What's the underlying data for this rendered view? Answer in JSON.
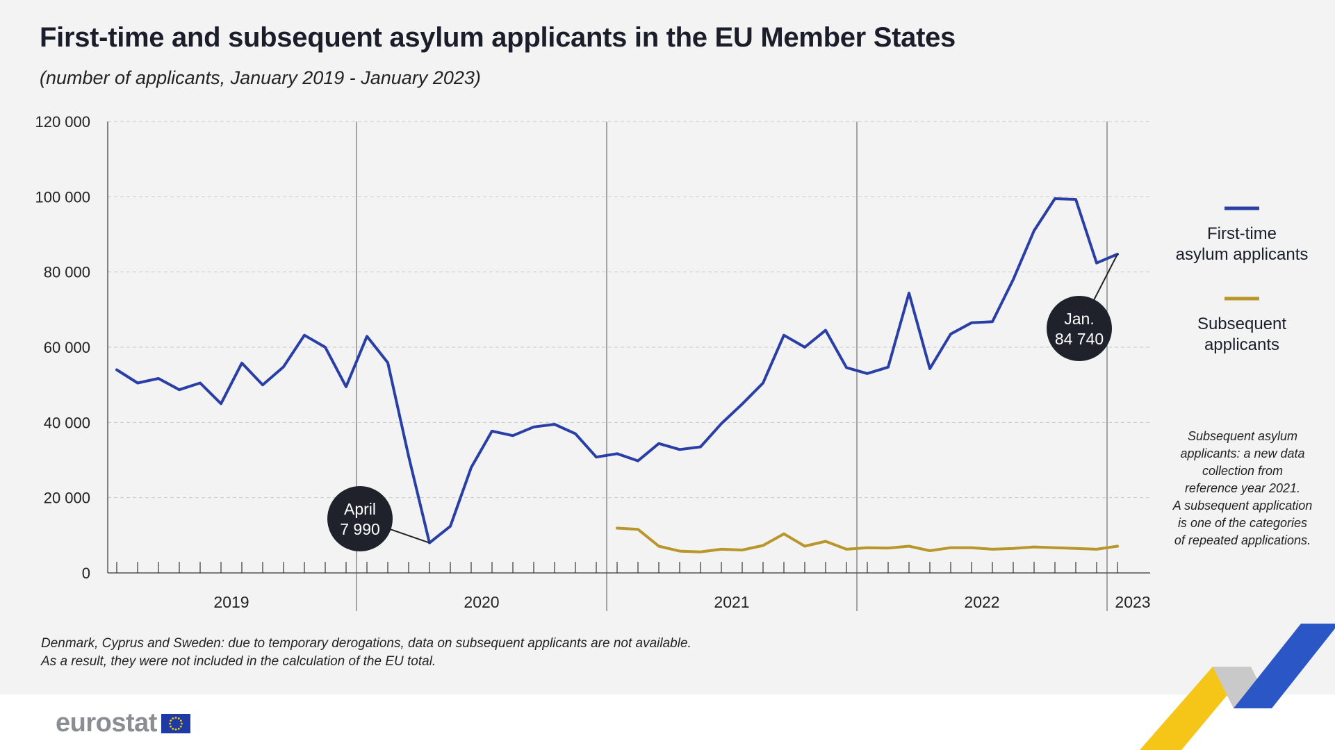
{
  "title": "First-time and subsequent asylum applicants in the EU Member States",
  "subtitle": "(number of applicants, January 2019 - January 2023)",
  "colors": {
    "first_time": "#2a3fa6",
    "subsequent": "#b8962a",
    "callout_bg": "#1f222b",
    "grid": "#c8c8c8",
    "axis": "#333333"
  },
  "chart_data": {
    "type": "line",
    "title": "First-time and subsequent asylum applicants in the EU Member States",
    "xlabel": "",
    "ylabel": "number of applicants",
    "ylim": [
      0,
      120000
    ],
    "y_ticks": [
      {
        "value": 0,
        "label": "0"
      },
      {
        "value": 20000,
        "label": "20 000"
      },
      {
        "value": 40000,
        "label": "40 000"
      },
      {
        "value": 60000,
        "label": "60 000"
      },
      {
        "value": 80000,
        "label": "80 000"
      },
      {
        "value": 100000,
        "label": "100 000"
      },
      {
        "value": 120000,
        "label": "120 000"
      }
    ],
    "years": [
      {
        "label": "2019",
        "start_index": 0,
        "months": 12
      },
      {
        "label": "2020",
        "start_index": 12,
        "months": 12
      },
      {
        "label": "2021",
        "start_index": 24,
        "months": 12
      },
      {
        "label": "2022",
        "start_index": 36,
        "months": 12
      },
      {
        "label": "2023",
        "start_index": 48,
        "months": 1
      }
    ],
    "x": [
      "2019-01",
      "2019-02",
      "2019-03",
      "2019-04",
      "2019-05",
      "2019-06",
      "2019-07",
      "2019-08",
      "2019-09",
      "2019-10",
      "2019-11",
      "2019-12",
      "2020-01",
      "2020-02",
      "2020-03",
      "2020-04",
      "2020-05",
      "2020-06",
      "2020-07",
      "2020-08",
      "2020-09",
      "2020-10",
      "2020-11",
      "2020-12",
      "2021-01",
      "2021-02",
      "2021-03",
      "2021-04",
      "2021-05",
      "2021-06",
      "2021-07",
      "2021-08",
      "2021-09",
      "2021-10",
      "2021-11",
      "2021-12",
      "2022-01",
      "2022-02",
      "2022-03",
      "2022-04",
      "2022-05",
      "2022-06",
      "2022-07",
      "2022-08",
      "2022-09",
      "2022-10",
      "2022-11",
      "2022-12",
      "2023-01"
    ],
    "series": [
      {
        "name": "First-time asylum applicants",
        "legend_lines": [
          "First-time",
          "asylum applicants"
        ],
        "color_key": "first_time",
        "values": [
          54000,
          50500,
          51700,
          48700,
          50500,
          45000,
          55800,
          50000,
          54800,
          63200,
          60000,
          49500,
          62900,
          55900,
          31000,
          7990,
          12400,
          28000,
          37700,
          36500,
          38800,
          39500,
          37000,
          30800,
          31700,
          29800,
          34400,
          32800,
          33500,
          39700,
          44900,
          50500,
          63200,
          60000,
          64500,
          54600,
          53000,
          54700,
          74400,
          54300,
          63500,
          66500,
          66800,
          78000,
          91000,
          99500,
          99300,
          82400,
          84740
        ]
      },
      {
        "name": "Subsequent applicants",
        "legend_lines": [
          "Subsequent",
          "applicants"
        ],
        "color_key": "subsequent",
        "values": [
          null,
          null,
          null,
          null,
          null,
          null,
          null,
          null,
          null,
          null,
          null,
          null,
          null,
          null,
          null,
          null,
          null,
          null,
          null,
          null,
          null,
          null,
          null,
          null,
          11900,
          11600,
          7100,
          5800,
          5600,
          6300,
          6100,
          7300,
          10400,
          7100,
          8400,
          6300,
          6700,
          6600,
          7100,
          5900,
          6700,
          6700,
          6300,
          6500,
          6900,
          6700,
          6500,
          6300,
          7100
        ]
      }
    ],
    "annotations": [
      {
        "index": 15,
        "series": 0,
        "lines": [
          "April",
          "7 990"
        ]
      },
      {
        "index": 48,
        "series": 0,
        "lines": [
          "Jan.",
          "84 740"
        ]
      }
    ],
    "legend_position": "right"
  },
  "side_note": [
    "Subsequent asylum",
    "applicants: a new data",
    "collection from",
    "reference year 2021.",
    "A subsequent application",
    "is one of the categories",
    "of repeated applications."
  ],
  "footnote": [
    "Denmark, Cyprus and Sweden: due to temporary derogations, data on subsequent applicants are not available.",
    "As a result, they were not included in the calculation of the EU total."
  ],
  "logo": {
    "text": "eurostat"
  }
}
